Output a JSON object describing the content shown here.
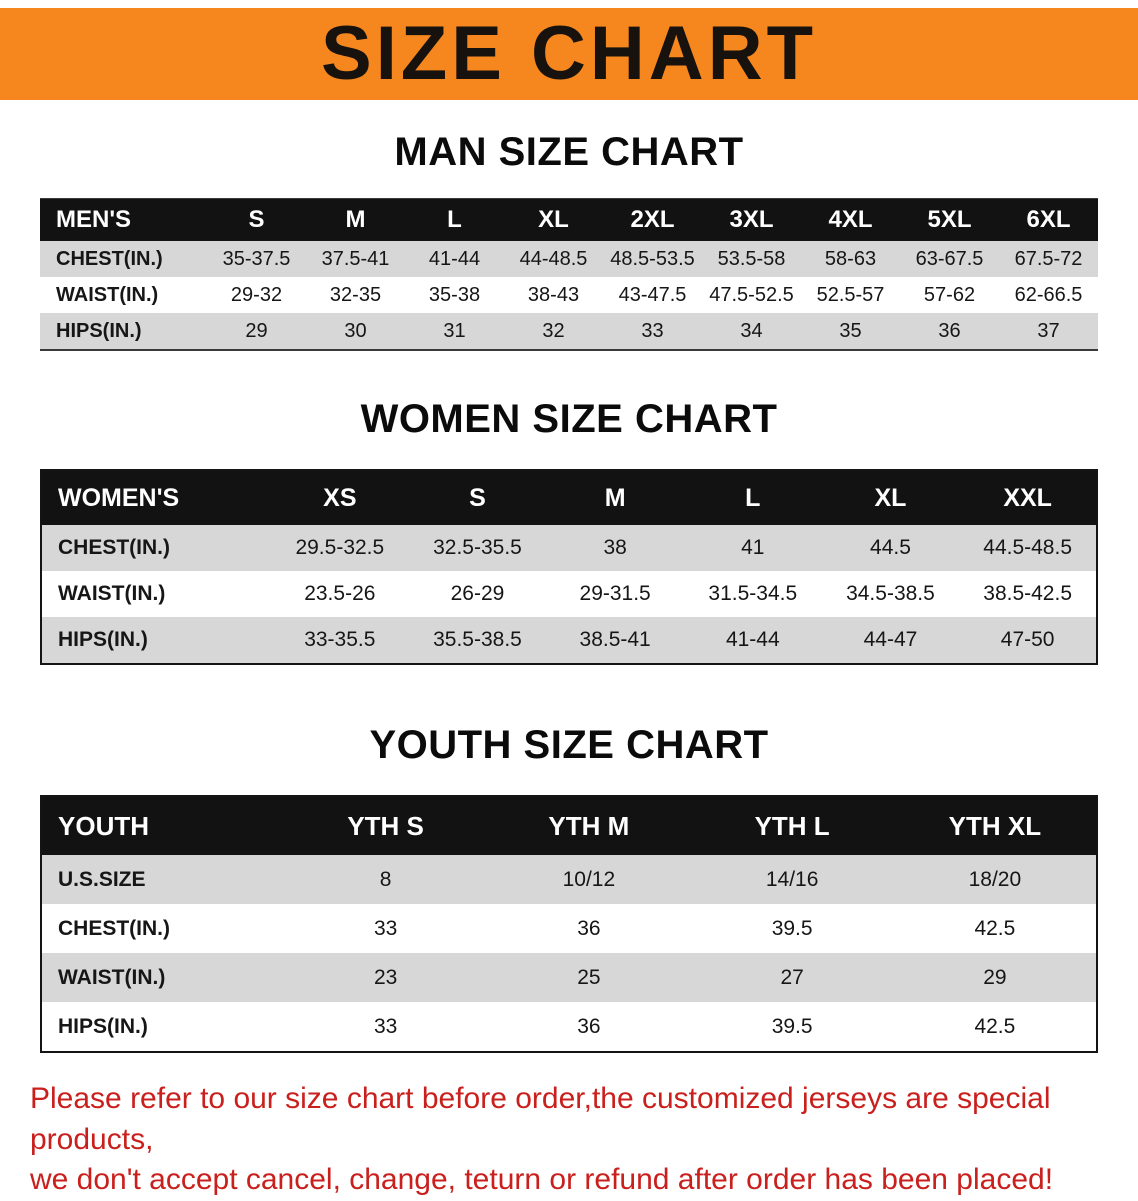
{
  "banner": {
    "title": "SIZE CHART"
  },
  "sections": {
    "men": {
      "title": "MAN SIZE CHART",
      "header": [
        "MEN'S",
        "S",
        "M",
        "L",
        "XL",
        "2XL",
        "3XL",
        "4XL",
        "5XL",
        "6XL"
      ],
      "rows": [
        [
          "CHEST(IN.)",
          "35-37.5",
          "37.5-41",
          "41-44",
          "44-48.5",
          "48.5-53.5",
          "53.5-58",
          "58-63",
          "63-67.5",
          "67.5-72"
        ],
        [
          "WAIST(IN.)",
          "29-32",
          "32-35",
          "35-38",
          "38-43",
          "43-47.5",
          "47.5-52.5",
          "52.5-57",
          "57-62",
          "62-66.5"
        ],
        [
          "HIPS(IN.)",
          "29",
          "30",
          "31",
          "32",
          "33",
          "34",
          "35",
          "36",
          "37"
        ]
      ]
    },
    "women": {
      "title": "WOMEN SIZE CHART",
      "header": [
        "WOMEN'S",
        "XS",
        "S",
        "M",
        "L",
        "XL",
        "XXL"
      ],
      "rows": [
        [
          "CHEST(IN.)",
          "29.5-32.5",
          "32.5-35.5",
          "38",
          "41",
          "44.5",
          "44.5-48.5"
        ],
        [
          "WAIST(IN.)",
          "23.5-26",
          "26-29",
          "29-31.5",
          "31.5-34.5",
          "34.5-38.5",
          "38.5-42.5"
        ],
        [
          "HIPS(IN.)",
          "33-35.5",
          "35.5-38.5",
          "38.5-41",
          "41-44",
          "44-47",
          "47-50"
        ]
      ]
    },
    "youth": {
      "title": "YOUTH SIZE CHART",
      "header": [
        "YOUTH",
        "YTH S",
        "YTH M",
        "YTH L",
        "YTH XL"
      ],
      "rows": [
        [
          "U.S.SIZE",
          "8",
          "10/12",
          "14/16",
          "18/20"
        ],
        [
          "CHEST(IN.)",
          "33",
          "36",
          "39.5",
          "42.5"
        ],
        [
          "WAIST(IN.)",
          "23",
          "25",
          "27",
          "29"
        ],
        [
          "HIPS(IN.)",
          "33",
          "36",
          "39.5",
          "42.5"
        ]
      ]
    }
  },
  "footer": {
    "line1": "Please refer to our size chart before order,the customized jerseys are special products,",
    "line2": "we don't accept cancel, change, teturn or refund after order has been placed!"
  },
  "colors": {
    "banner_bg": "#f6871f",
    "table_header_bg": "#121212",
    "row_alt_gray": "#d7d7d7",
    "note_red": "#c9201d"
  }
}
